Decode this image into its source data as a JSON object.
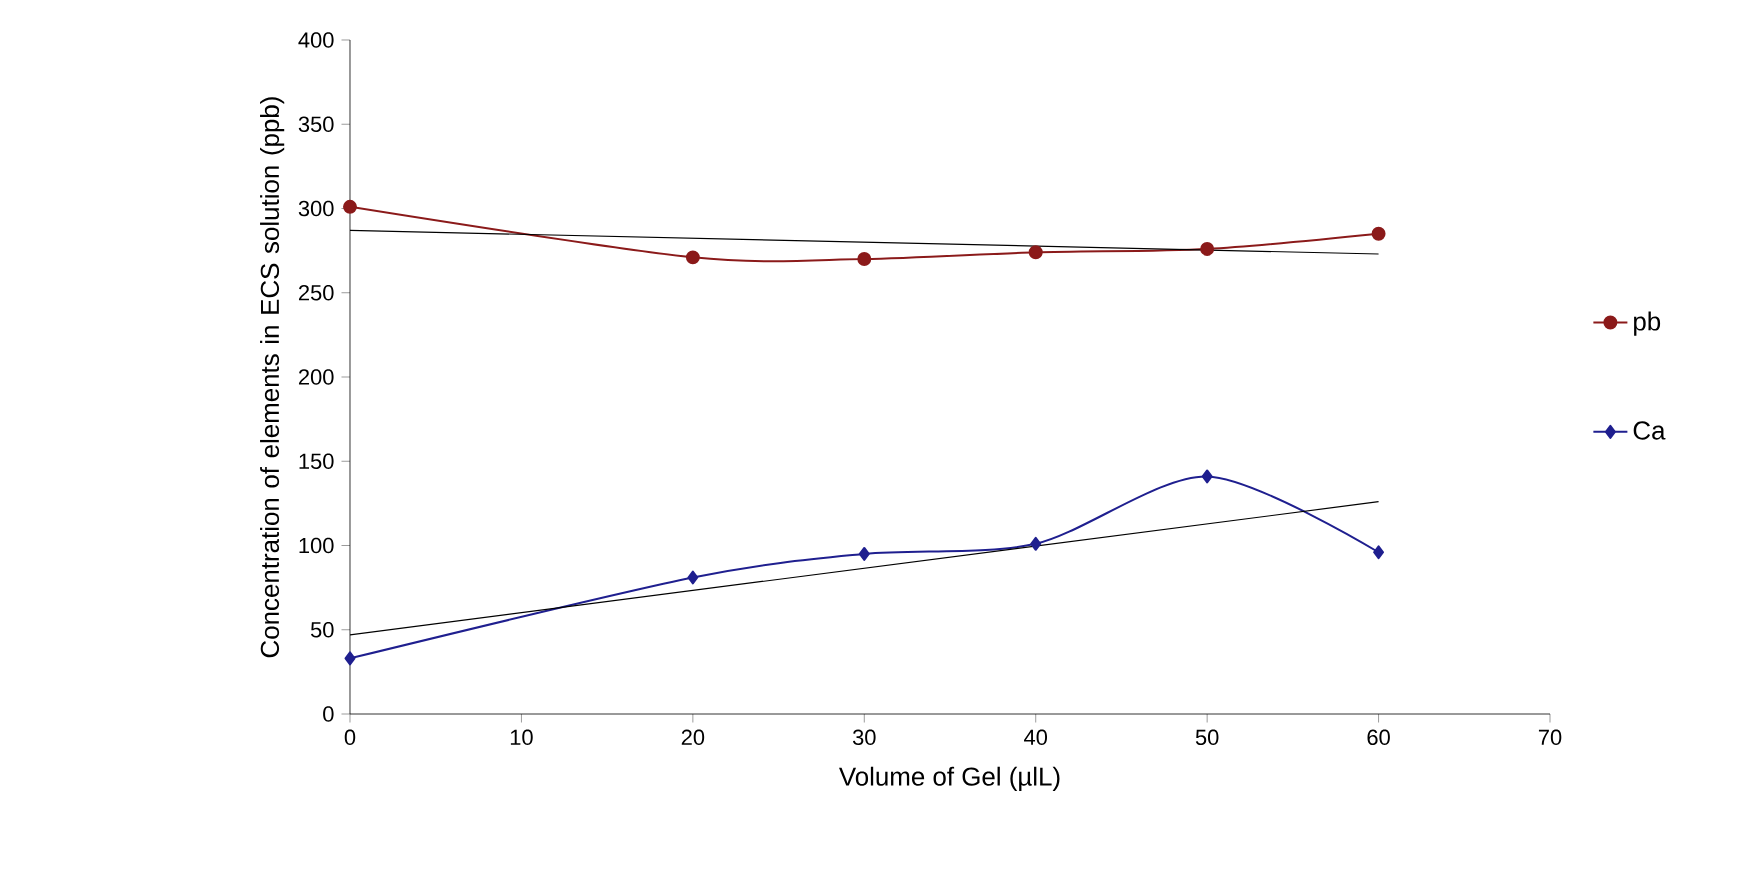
{
  "chart_data": {
    "type": "line",
    "xlabel": "Volume of Gel (µlL)",
    "ylabel": "Concentration of elements in ECS solution (ppb)",
    "xlim": [
      0,
      70
    ],
    "xticks": [
      0,
      10,
      20,
      30,
      40,
      50,
      60,
      70
    ],
    "ylim": [
      0,
      400
    ],
    "yticks": [
      0,
      50,
      100,
      150,
      200,
      250,
      300,
      350,
      400
    ],
    "legend": "right",
    "grid": false,
    "series": [
      {
        "name": "pb",
        "color": "#8b1a1a",
        "marker": "circle",
        "x": [
          0,
          20,
          30,
          40,
          50,
          60
        ],
        "values": [
          301,
          271,
          270,
          274,
          276,
          285
        ]
      },
      {
        "name": "Ca",
        "color": "#1f1f8f",
        "marker": "diamond",
        "x": [
          0,
          20,
          30,
          40,
          50,
          60
        ],
        "values": [
          33,
          81,
          95,
          101,
          141,
          96
        ]
      },
      {
        "type": "line",
        "color": "#000000",
        "marker": "none",
        "x": [
          0,
          60
        ],
        "values": [
          287,
          273
        ]
      },
      {
        "type": "line",
        "color": "#000000",
        "marker": "none",
        "x": [
          0,
          60
        ],
        "values": [
          47,
          126
        ]
      }
    ]
  }
}
